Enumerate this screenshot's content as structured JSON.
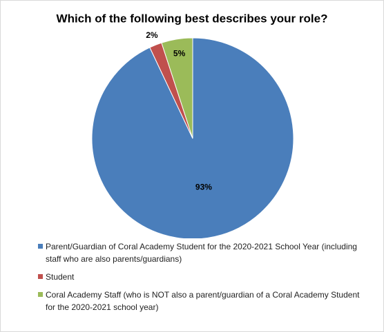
{
  "chart_data": {
    "type": "pie",
    "title": "Which of the following best describes your role?",
    "categories": [
      "Parent/Guardian of Coral Academy Student for the 2020-2021 School Year (including staff who are also parents/guardians)",
      "Student",
      "Coral Academy Staff (who is NOT also a parent/guardian of a Coral Academy Student for the 2020-2021 school year)"
    ],
    "values": [
      93,
      2,
      5
    ],
    "value_labels": [
      "93%",
      "2%",
      "5%"
    ],
    "colors": [
      "#4a7ebb",
      "#c0504d",
      "#9bbb59"
    ]
  }
}
